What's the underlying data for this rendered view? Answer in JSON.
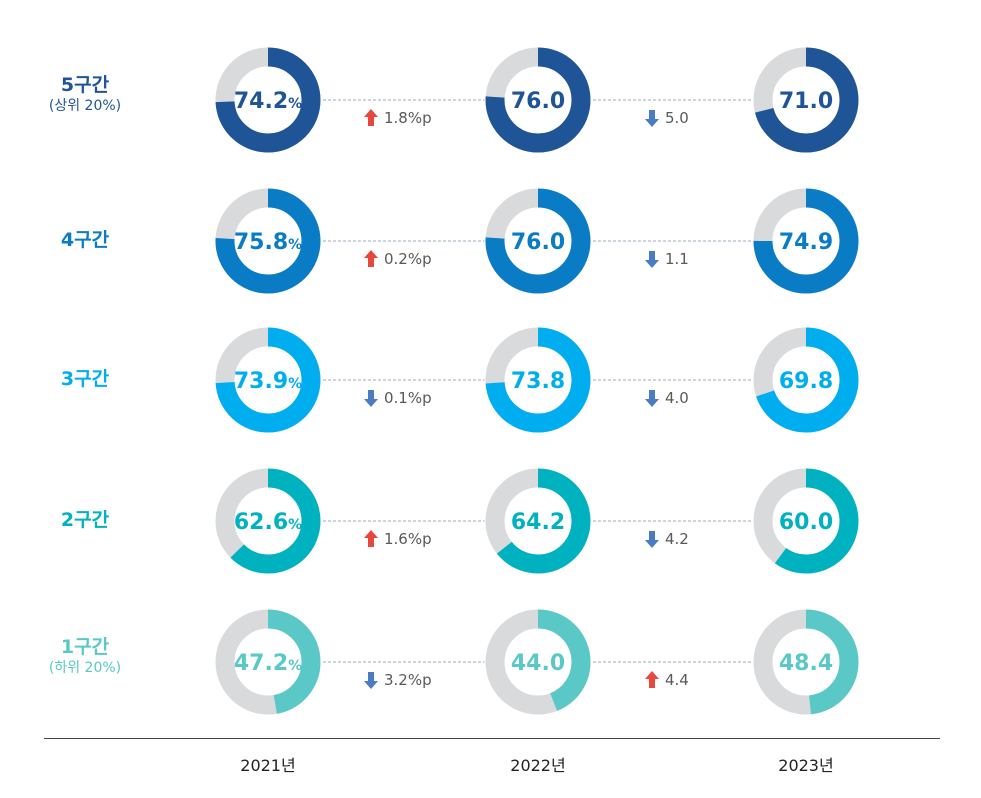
{
  "chart_data": {
    "type": "donut",
    "years": [
      "2021년",
      "2022년",
      "2023년"
    ],
    "groups": [
      {
        "label": "5구간",
        "sublabel": "(상위 20%)",
        "color": "#1f5597",
        "values": [
          74.2,
          76.0,
          71.0
        ],
        "value_text": [
          "74.2",
          "76.0",
          "71.0"
        ],
        "unit": "%",
        "changes": [
          {
            "dir": "up",
            "text": "1.8%p"
          },
          {
            "dir": "down",
            "text": "5.0"
          }
        ]
      },
      {
        "label": "4구간",
        "sublabel": "",
        "color": "#0a7cc6",
        "values": [
          75.8,
          76.0,
          74.9
        ],
        "value_text": [
          "75.8",
          "76.0",
          "74.9"
        ],
        "unit": "%",
        "changes": [
          {
            "dir": "up",
            "text": "0.2%p"
          },
          {
            "dir": "down",
            "text": "1.1"
          }
        ]
      },
      {
        "label": "3구간",
        "sublabel": "",
        "color": "#00aeef",
        "values": [
          73.9,
          73.8,
          69.8
        ],
        "value_text": [
          "73.9",
          "73.8",
          "69.8"
        ],
        "unit": "%",
        "changes": [
          {
            "dir": "down",
            "text": "0.1%p"
          },
          {
            "dir": "down",
            "text": "4.0"
          }
        ]
      },
      {
        "label": "2구간",
        "sublabel": "",
        "color": "#00b2c0",
        "values": [
          62.6,
          64.2,
          60.0
        ],
        "value_text": [
          "62.6",
          "64.2",
          "60.0"
        ],
        "unit": "%",
        "changes": [
          {
            "dir": "up",
            "text": "1.6%p"
          },
          {
            "dir": "down",
            "text": "4.2"
          }
        ]
      },
      {
        "label": "1구간",
        "sublabel": "(하위 20%)",
        "color": "#5bc8c8",
        "values": [
          47.2,
          44.0,
          48.4
        ],
        "value_text": [
          "47.2",
          "44.0",
          "48.4"
        ],
        "unit": "%",
        "changes": [
          {
            "dir": "down",
            "text": "3.2%p"
          },
          {
            "dir": "up",
            "text": "4.4"
          }
        ]
      }
    ],
    "track_color": "#d9dadc",
    "up_color": "#e8473d",
    "down_color": "#4a7cc2",
    "connector_color": "#9aa8b8"
  }
}
